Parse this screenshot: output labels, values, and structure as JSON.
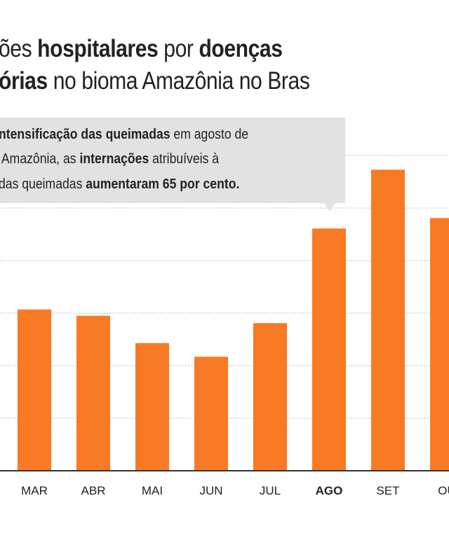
{
  "title": {
    "line1": [
      {
        "text": "ões ",
        "bold": false
      },
      {
        "text": "hospitalares",
        "bold": true
      },
      {
        "text": " por ",
        "bold": false
      },
      {
        "text": "doenças",
        "bold": true
      }
    ],
    "line2": [
      {
        "text": "órias",
        "bold": true
      },
      {
        "text": " no bioma Amazônia no Bras",
        "bold": false
      }
    ]
  },
  "annotation": {
    "line1": [
      {
        "text": "ntensificação das queimadas",
        "bold": true
      },
      {
        "text": " em agosto de",
        "bold": false
      }
    ],
    "line2": [
      {
        "text": " Amazônia, as ",
        "bold": false
      },
      {
        "text": "internações",
        "bold": true
      },
      {
        "text": " atribuíveis à",
        "bold": false
      }
    ],
    "line3": [
      {
        "text": "das queimadas ",
        "bold": false
      },
      {
        "text": "aumentaram 65 por cento.",
        "bold": true
      }
    ]
  },
  "chart_data": {
    "type": "bar",
    "categories": [
      "MAR",
      "ABR",
      "MAI",
      "JUN",
      "JUL",
      "AGO",
      "SET",
      "OU"
    ],
    "highlighted_category": "AGO",
    "values": [
      3.07,
      2.95,
      2.43,
      2.17,
      2.81,
      4.61,
      5.73,
      4.81
    ],
    "ylim": [
      0,
      6
    ],
    "grid": true,
    "bar_color": "#f87a24",
    "xlabel": "",
    "ylabel": ""
  }
}
